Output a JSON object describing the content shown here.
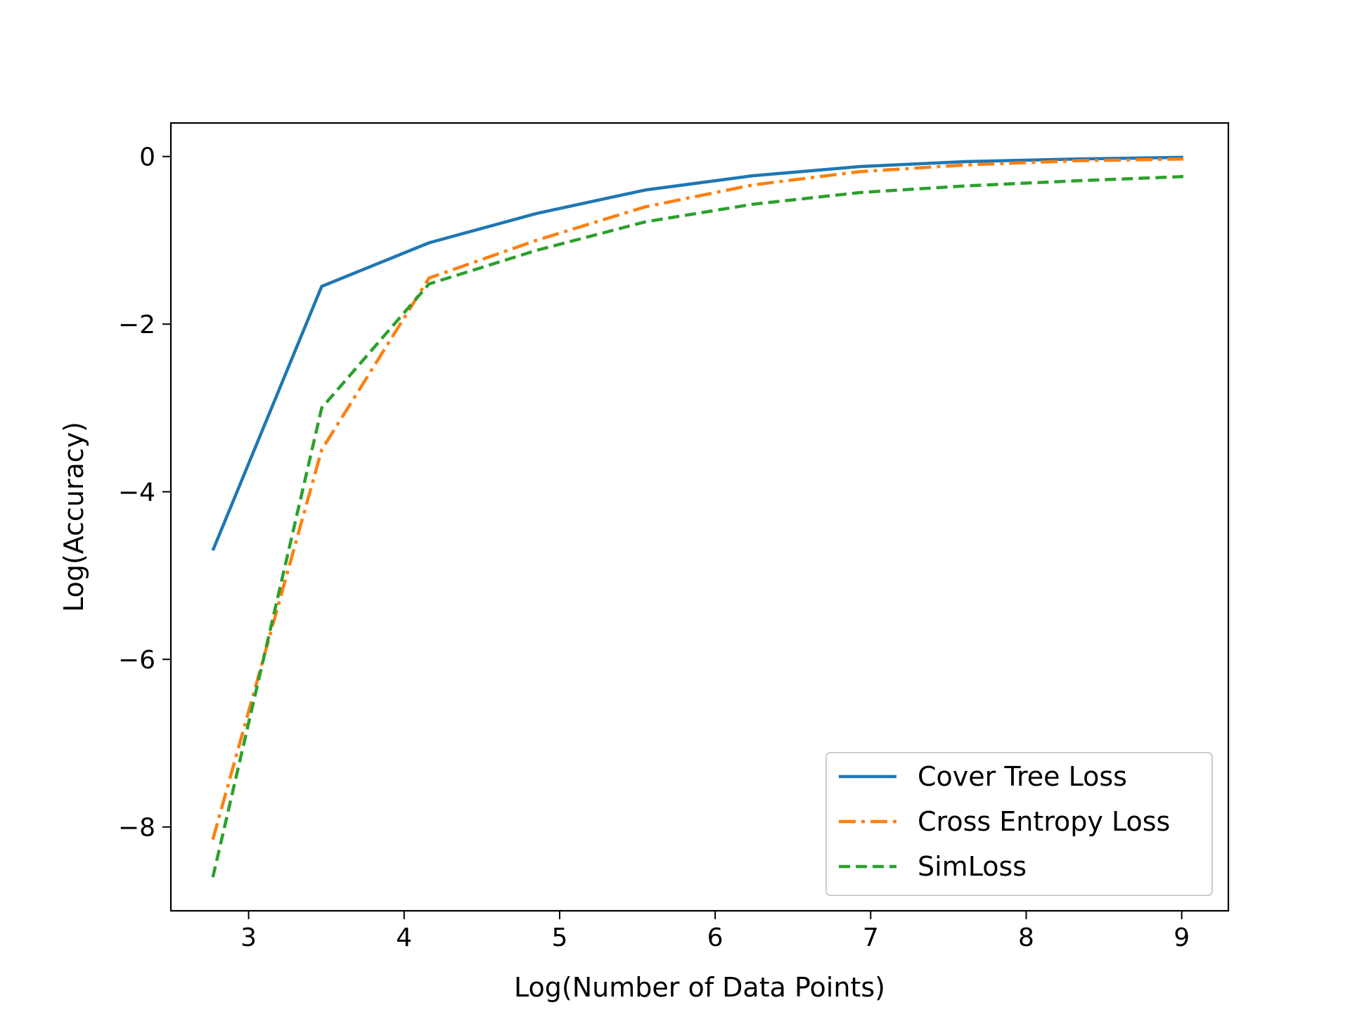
{
  "chart_data": {
    "type": "line",
    "title": "",
    "xlabel": "Log(Number of Data Points)",
    "ylabel": "Log(Accuracy)",
    "xlim": [
      2.5,
      9.3
    ],
    "ylim": [
      -9.0,
      0.4
    ],
    "xticks": [
      3,
      4,
      5,
      6,
      7,
      8,
      9
    ],
    "yticks": [
      0,
      -2,
      -4,
      -6,
      -8
    ],
    "grid": false,
    "legend_position": "lower-right",
    "x": [
      2.77,
      3.47,
      4.16,
      4.85,
      5.55,
      6.24,
      6.93,
      7.62,
      8.32,
      9.01
    ],
    "series": [
      {
        "name": "Cover Tree Loss",
        "color": "#1f77b4",
        "style": "solid",
        "values": [
          -4.7,
          -1.55,
          -1.03,
          -0.68,
          -0.4,
          -0.23,
          -0.12,
          -0.06,
          -0.03,
          -0.01
        ]
      },
      {
        "name": "Cross Entropy Loss",
        "color": "#ff7f0e",
        "style": "dashdot",
        "values": [
          -8.15,
          -3.5,
          -1.45,
          -1.0,
          -0.6,
          -0.34,
          -0.18,
          -0.1,
          -0.05,
          -0.03
        ]
      },
      {
        "name": "SimLoss",
        "color": "#2ca02c",
        "style": "dashed",
        "values": [
          -8.6,
          -3.0,
          -1.52,
          -1.12,
          -0.78,
          -0.57,
          -0.43,
          -0.35,
          -0.29,
          -0.24
        ]
      }
    ]
  }
}
